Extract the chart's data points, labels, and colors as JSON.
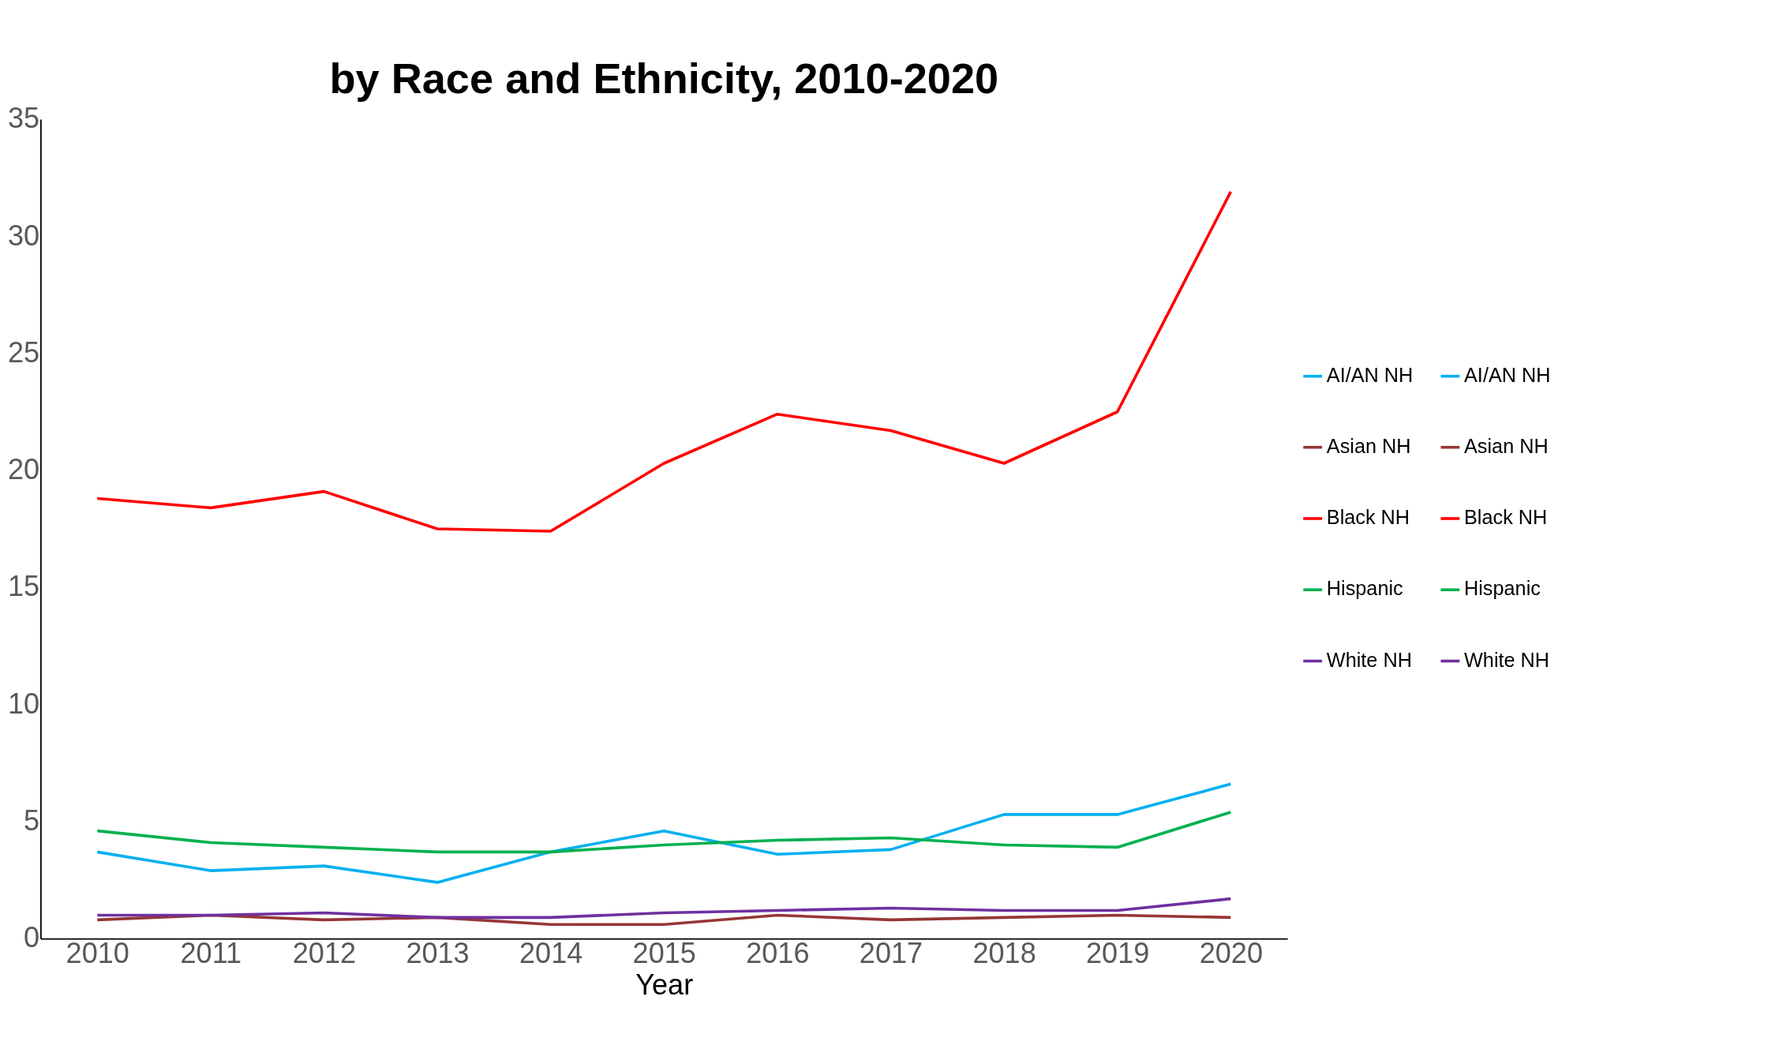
{
  "chart_data": {
    "type": "line",
    "title": "by Race and Ethnicity, 2010-2020",
    "xlabel": "Year",
    "categories": [
      "2010",
      "2011",
      "2012",
      "2013",
      "2014",
      "2015",
      "2016",
      "2017",
      "2018",
      "2019",
      "2020"
    ],
    "ylim": [
      0,
      35
    ],
    "yticks": [
      0,
      5,
      10,
      15,
      20,
      25,
      30,
      35
    ],
    "grid": false,
    "legend": "right",
    "marker": "none",
    "line_style": "solid",
    "series": [
      {
        "name": "AI/AN NH",
        "color": "#00b0f0",
        "values": [
          3.7,
          2.9,
          3.1,
          2.4,
          3.7,
          4.6,
          3.6,
          3.8,
          5.3,
          5.3,
          6.6
        ]
      },
      {
        "name": "Asian NH",
        "color": "#953735",
        "values": [
          0.8,
          1.0,
          0.8,
          0.9,
          0.6,
          0.6,
          1.0,
          0.8,
          0.9,
          1.0,
          0.9
        ]
      },
      {
        "name": "Black NH",
        "color": "#ff0000",
        "values": [
          18.8,
          18.4,
          19.1,
          17.5,
          17.4,
          20.3,
          22.4,
          21.7,
          20.3,
          22.5,
          31.9
        ]
      },
      {
        "name": "Hispanic",
        "color": "#00b050",
        "values": [
          4.6,
          4.1,
          3.9,
          3.7,
          3.7,
          4.0,
          4.2,
          4.3,
          4.0,
          3.9,
          5.4
        ]
      },
      {
        "name": "White NH",
        "color": "#7030a0",
        "values": [
          1.0,
          1.0,
          1.1,
          0.9,
          0.9,
          1.1,
          1.2,
          1.3,
          1.2,
          1.2,
          1.7
        ]
      }
    ]
  }
}
